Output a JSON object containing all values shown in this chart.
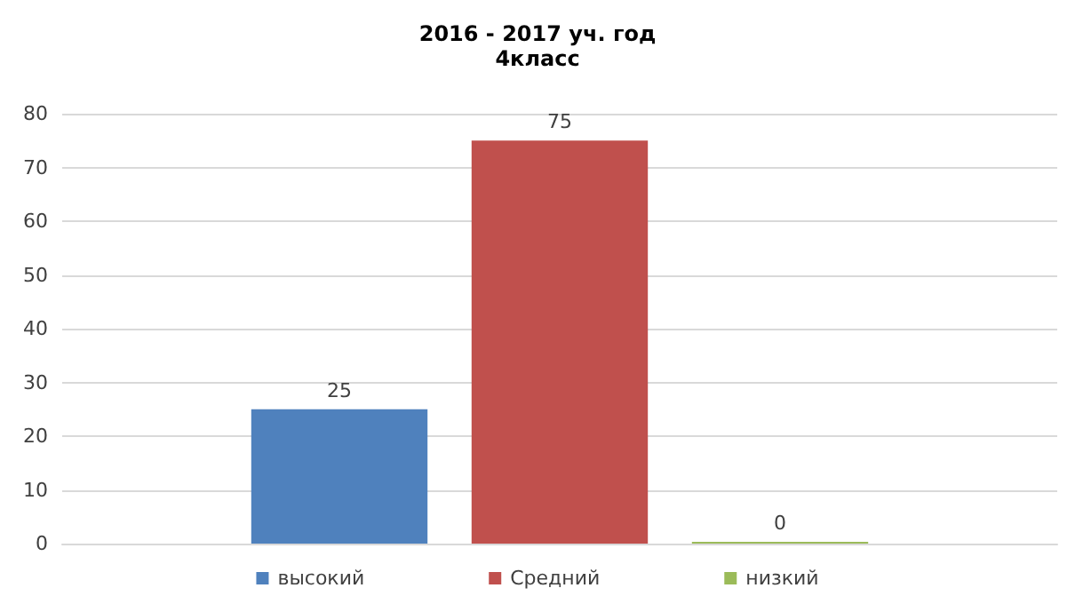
{
  "chart_data": {
    "type": "bar",
    "title": "2016 - 2017 уч. год",
    "subtitle": "4класс",
    "categories": [
      null
    ],
    "series": [
      {
        "name": "высокий",
        "color": "#4f81bd",
        "values": [
          25
        ]
      },
      {
        "name": "Средний",
        "color": "#c0504d",
        "values": [
          75
        ]
      },
      {
        "name": "низкий",
        "color": "#9bbb59",
        "values": [
          0
        ]
      }
    ],
    "ylim": [
      0,
      80
    ],
    "yticks": [
      0,
      10,
      20,
      30,
      40,
      50,
      60,
      70,
      80
    ],
    "grid": "y",
    "legend": "bottom",
    "data_labels": true
  }
}
